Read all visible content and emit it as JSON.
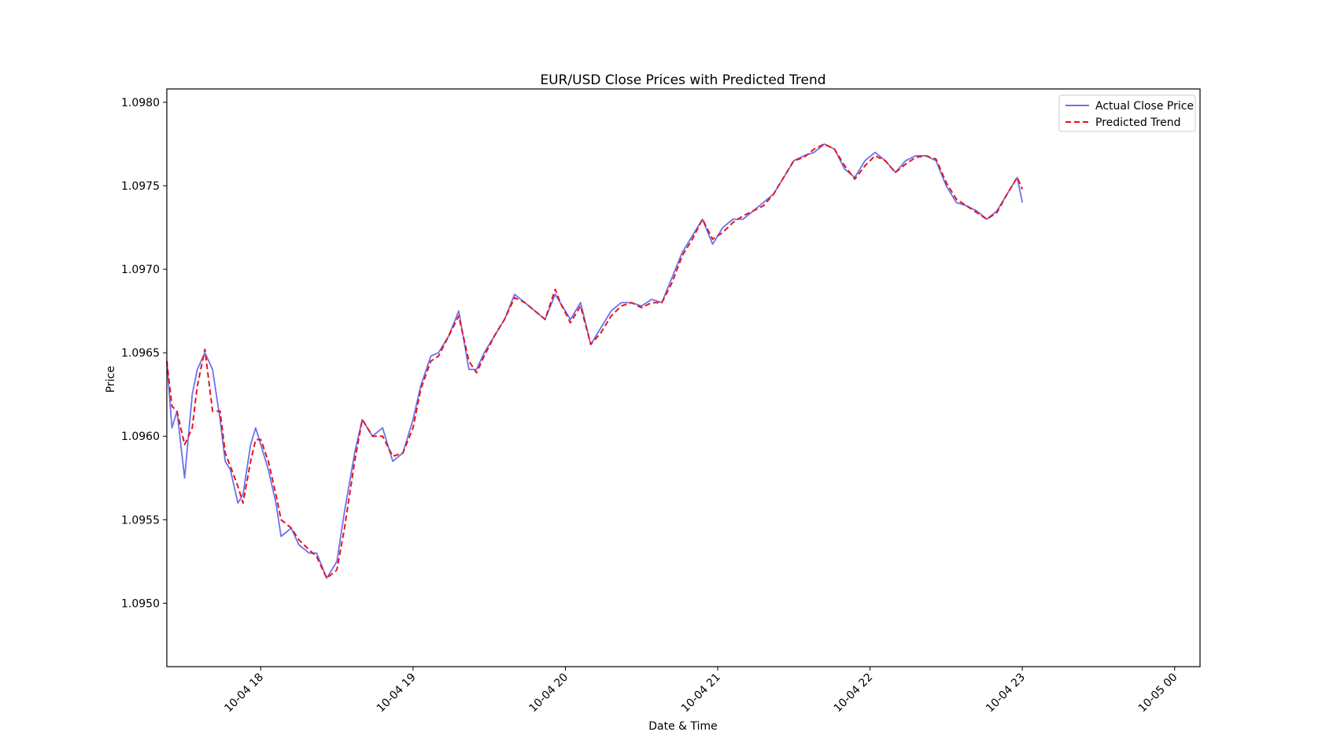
{
  "chart_data": {
    "type": "line",
    "title": "EUR/USD Close Prices with Predicted Trend",
    "xlabel": "Date & Time",
    "ylabel": "Price",
    "x_range": [
      "10-04 17:23",
      "10-05 00:10"
    ],
    "ylim": [
      1.09462,
      1.09808
    ],
    "x_ticks": [
      "10-04 18",
      "10-04 19",
      "10-04 20",
      "10-04 21",
      "10-04 22",
      "10-04 23",
      "10-05 00"
    ],
    "y_ticks": [
      "1.0950",
      "1.0955",
      "1.0960",
      "1.0965",
      "1.0970",
      "1.0975",
      "1.0980"
    ],
    "grid": false,
    "legend_position": "top-right",
    "series": [
      {
        "name": "Actual Close Price",
        "color": "#6b72ee",
        "style": "solid",
        "x": [
          "10-04 17:23",
          "10-04 17:25",
          "10-04 17:27",
          "10-04 17:30",
          "10-04 17:33",
          "10-04 17:35",
          "10-04 17:38",
          "10-04 17:41",
          "10-04 17:44",
          "10-04 17:46",
          "10-04 17:48",
          "10-04 17:51",
          "10-04 17:53",
          "10-04 17:56",
          "10-04 17:58",
          "10-04 18:00",
          "10-04 18:03",
          "10-04 18:06",
          "10-04 18:08",
          "10-04 18:12",
          "10-04 18:15",
          "10-04 18:19",
          "10-04 18:22",
          "10-04 18:26",
          "10-04 18:30",
          "10-04 18:33",
          "10-04 18:37",
          "10-04 18:40",
          "10-04 18:44",
          "10-04 18:48",
          "10-04 18:52",
          "10-04 18:56",
          "10-04 19:00",
          "10-04 19:03",
          "10-04 19:07",
          "10-04 19:10",
          "10-04 19:14",
          "10-04 19:18",
          "10-04 19:22",
          "10-04 19:25",
          "10-04 19:28",
          "10-04 19:32",
          "10-04 19:36",
          "10-04 19:40",
          "10-04 19:44",
          "10-04 19:48",
          "10-04 19:52",
          "10-04 19:56",
          "10-04 19:58",
          "10-04 20:02",
          "10-04 20:06",
          "10-04 20:10",
          "10-04 20:14",
          "10-04 20:18",
          "10-04 20:22",
          "10-04 20:26",
          "10-04 20:30",
          "10-04 20:34",
          "10-04 20:38",
          "10-04 20:42",
          "10-04 20:46",
          "10-04 20:50",
          "10-04 20:54",
          "10-04 20:58",
          "10-04 21:02",
          "10-04 21:06",
          "10-04 21:10",
          "10-04 21:14",
          "10-04 21:18",
          "10-04 21:22",
          "10-04 21:26",
          "10-04 21:30",
          "10-04 21:34",
          "10-04 21:38",
          "10-04 21:42",
          "10-04 21:46",
          "10-04 21:50",
          "10-04 21:54",
          "10-04 21:58",
          "10-04 22:02",
          "10-04 22:06",
          "10-04 22:10",
          "10-04 22:14",
          "10-04 22:18",
          "10-04 22:22",
          "10-04 22:26",
          "10-04 22:30",
          "10-04 22:34",
          "10-04 22:38",
          "10-04 22:42",
          "10-04 22:46",
          "10-04 22:50",
          "10-04 22:54",
          "10-04 22:58",
          "10-04 23:00"
        ],
        "values": [
          1.09645,
          1.09605,
          1.09615,
          1.09575,
          1.09625,
          1.0964,
          1.0965,
          1.0964,
          1.0961,
          1.09585,
          1.0958,
          1.0956,
          1.09565,
          1.09595,
          1.09605,
          1.09595,
          1.0958,
          1.0956,
          1.0954,
          1.09545,
          1.09535,
          1.0953,
          1.0953,
          1.09515,
          1.09525,
          1.09555,
          1.0959,
          1.0961,
          1.096,
          1.09605,
          1.09585,
          1.0959,
          1.0961,
          1.0963,
          1.09648,
          1.0965,
          1.0966,
          1.09675,
          1.0964,
          1.0964,
          1.0965,
          1.0966,
          1.0967,
          1.09685,
          1.0968,
          1.09675,
          1.0967,
          1.09685,
          1.0968,
          1.0967,
          1.0968,
          1.09655,
          1.09665,
          1.09675,
          1.0968,
          1.0968,
          1.09678,
          1.09682,
          1.0968,
          1.09695,
          1.0971,
          1.0972,
          1.0973,
          1.09715,
          1.09725,
          1.0973,
          1.0973,
          1.09735,
          1.0974,
          1.09745,
          1.09755,
          1.09765,
          1.09768,
          1.0977,
          1.09775,
          1.09772,
          1.0976,
          1.09755,
          1.09765,
          1.0977,
          1.09765,
          1.09758,
          1.09765,
          1.09768,
          1.09768,
          1.09765,
          1.0975,
          1.0974,
          1.09738,
          1.09735,
          1.0973,
          1.09735,
          1.09745,
          1.09755,
          1.0974
        ]
      },
      {
        "name": "Predicted Trend",
        "color": "#e8121d",
        "style": "dashed",
        "x": [
          "10-04 17:23",
          "10-04 17:25",
          "10-04 17:27",
          "10-04 17:30",
          "10-04 17:33",
          "10-04 17:35",
          "10-04 17:38",
          "10-04 17:41",
          "10-04 17:44",
          "10-04 17:46",
          "10-04 17:48",
          "10-04 17:51",
          "10-04 17:53",
          "10-04 17:56",
          "10-04 17:58",
          "10-04 18:00",
          "10-04 18:03",
          "10-04 18:06",
          "10-04 18:08",
          "10-04 18:12",
          "10-04 18:15",
          "10-04 18:19",
          "10-04 18:22",
          "10-04 18:26",
          "10-04 18:30",
          "10-04 18:33",
          "10-04 18:37",
          "10-04 18:40",
          "10-04 18:44",
          "10-04 18:48",
          "10-04 18:52",
          "10-04 18:56",
          "10-04 19:00",
          "10-04 19:03",
          "10-04 19:07",
          "10-04 19:10",
          "10-04 19:14",
          "10-04 19:18",
          "10-04 19:22",
          "10-04 19:25",
          "10-04 19:28",
          "10-04 19:32",
          "10-04 19:36",
          "10-04 19:40",
          "10-04 19:44",
          "10-04 19:48",
          "10-04 19:52",
          "10-04 19:56",
          "10-04 19:58",
          "10-04 20:02",
          "10-04 20:06",
          "10-04 20:10",
          "10-04 20:14",
          "10-04 20:18",
          "10-04 20:22",
          "10-04 20:26",
          "10-04 20:30",
          "10-04 20:34",
          "10-04 20:38",
          "10-04 20:42",
          "10-04 20:46",
          "10-04 20:50",
          "10-04 20:54",
          "10-04 20:58",
          "10-04 21:02",
          "10-04 21:06",
          "10-04 21:10",
          "10-04 21:14",
          "10-04 21:18",
          "10-04 21:22",
          "10-04 21:26",
          "10-04 21:30",
          "10-04 21:34",
          "10-04 21:38",
          "10-04 21:42",
          "10-04 21:46",
          "10-04 21:50",
          "10-04 21:54",
          "10-04 21:58",
          "10-04 22:02",
          "10-04 22:06",
          "10-04 22:10",
          "10-04 22:14",
          "10-04 22:18",
          "10-04 22:22",
          "10-04 22:26",
          "10-04 22:30",
          "10-04 22:34",
          "10-04 22:38",
          "10-04 22:42",
          "10-04 22:46",
          "10-04 22:50",
          "10-04 22:54",
          "10-04 22:58",
          "10-04 23:00"
        ],
        "values": [
          1.09645,
          1.09618,
          1.09615,
          1.09595,
          1.09605,
          1.0963,
          1.09652,
          1.09615,
          1.09615,
          1.0959,
          1.09582,
          1.0957,
          1.0956,
          1.09585,
          1.09598,
          1.09598,
          1.09585,
          1.09565,
          1.0955,
          1.09545,
          1.09538,
          1.09532,
          1.09528,
          1.09515,
          1.0952,
          1.09545,
          1.09585,
          1.0961,
          1.096,
          1.096,
          1.09588,
          1.0959,
          1.09605,
          1.09628,
          1.09645,
          1.09648,
          1.0966,
          1.09672,
          1.09645,
          1.09638,
          1.09648,
          1.0966,
          1.0967,
          1.09683,
          1.0968,
          1.09675,
          1.0967,
          1.09688,
          1.0968,
          1.09668,
          1.09678,
          1.09655,
          1.09662,
          1.09672,
          1.09678,
          1.0968,
          1.09677,
          1.0968,
          1.0968,
          1.09692,
          1.09708,
          1.09718,
          1.0973,
          1.09718,
          1.09722,
          1.09728,
          1.09732,
          1.09735,
          1.09738,
          1.09745,
          1.09755,
          1.09765,
          1.09767,
          1.09772,
          1.09775,
          1.09772,
          1.09762,
          1.09754,
          1.09762,
          1.09768,
          1.09765,
          1.09758,
          1.09763,
          1.09767,
          1.09768,
          1.09766,
          1.09752,
          1.09742,
          1.09738,
          1.09734,
          1.0973,
          1.09734,
          1.09745,
          1.09755,
          1.09748
        ]
      }
    ]
  }
}
